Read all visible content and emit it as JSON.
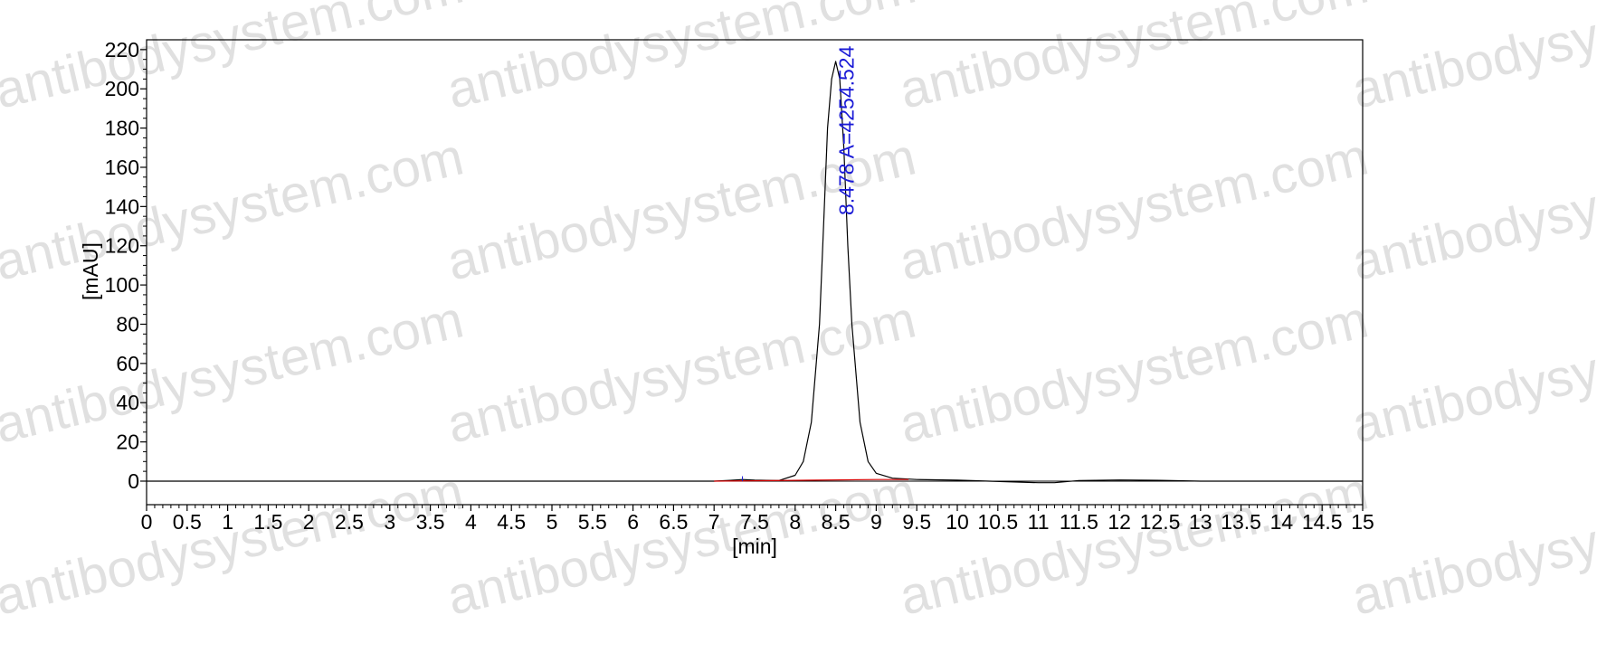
{
  "chart_data": {
    "type": "line",
    "xlabel": "[min]",
    "ylabel": "[mAU]",
    "xlim": [
      0,
      15
    ],
    "ylim": [
      -12,
      225
    ],
    "x_ticks": [
      "0",
      "0.5",
      "1",
      "1.5",
      "2",
      "2.5",
      "3",
      "3.5",
      "4",
      "4.5",
      "5",
      "5.5",
      "6",
      "6.5",
      "7",
      "7.5",
      "8",
      "8.5",
      "9",
      "9.5",
      "10",
      "10.5",
      "11",
      "11.5",
      "12",
      "12.5",
      "13",
      "13.5",
      "14",
      "14.5",
      "15"
    ],
    "y_ticks": [
      "0",
      "20",
      "40",
      "60",
      "80",
      "100",
      "120",
      "140",
      "160",
      "180",
      "200",
      "220"
    ],
    "series": [
      {
        "color": "#000000",
        "x": [
          0,
          7.0,
          7.2,
          7.35,
          7.5,
          7.8,
          8.0,
          8.1,
          8.2,
          8.3,
          8.35,
          8.4,
          8.45,
          8.5,
          8.55,
          8.6,
          8.65,
          8.7,
          8.8,
          8.9,
          9.0,
          9.2,
          9.5,
          10.0,
          11.0,
          11.2,
          11.5,
          12.0,
          12.5,
          13.0,
          15.0
        ],
        "y": [
          0,
          0,
          0.4,
          0.8,
          0.5,
          0.3,
          3,
          10,
          30,
          80,
          130,
          180,
          205,
          214,
          205,
          170,
          120,
          80,
          30,
          10,
          4,
          1.5,
          0.8,
          0.5,
          -0.8,
          -0.8,
          0.3,
          0.6,
          0.4,
          0,
          0
        ]
      },
      {
        "color": "#d40000",
        "x": [
          7.0,
          8.0,
          9.0,
          9.4
        ],
        "y": [
          0,
          0.4,
          0.8,
          0.8
        ]
      }
    ],
    "annotations": [
      {
        "text": "8.478 A=4254.524",
        "x": 8.478,
        "color": "#1a1ad6"
      }
    ],
    "watermark": "antibodysystem.com"
  }
}
